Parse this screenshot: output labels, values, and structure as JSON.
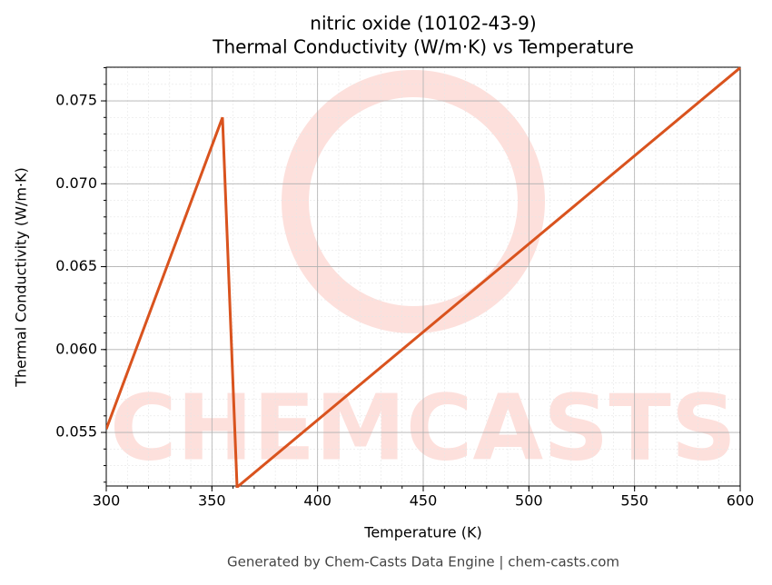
{
  "chart_data": {
    "type": "line",
    "title": "nitric oxide (10102-43-9)",
    "subtitle": "Thermal Conductivity (W/m·K) vs Temperature",
    "x_label": "Temperature (K)",
    "y_label": "Thermal Conductivity (W/m·K)",
    "watermark": "CHEMCASTS",
    "footer": "Generated by Chem-Casts Data Engine | chem-casts.com",
    "x": [
      300,
      355,
      361.9,
      600
    ],
    "series": [
      {
        "name": "nitric oxide",
        "color": "#d9531e",
        "values": [
          0.0552,
          0.074,
          0.0517,
          0.077
        ]
      }
    ],
    "xlim": [
      300,
      600
    ],
    "ylim": [
      0.05177,
      0.07703
    ],
    "xticks": [
      300,
      350,
      400,
      450,
      500,
      550,
      600
    ],
    "yticks": [
      0.055,
      {
        "value": 0.06,
        "label": "0.060"
      },
      0.065,
      {
        "value": 0.07,
        "label": "0.070"
      },
      0.075
    ],
    "grid": true,
    "minor_grid": true
  }
}
